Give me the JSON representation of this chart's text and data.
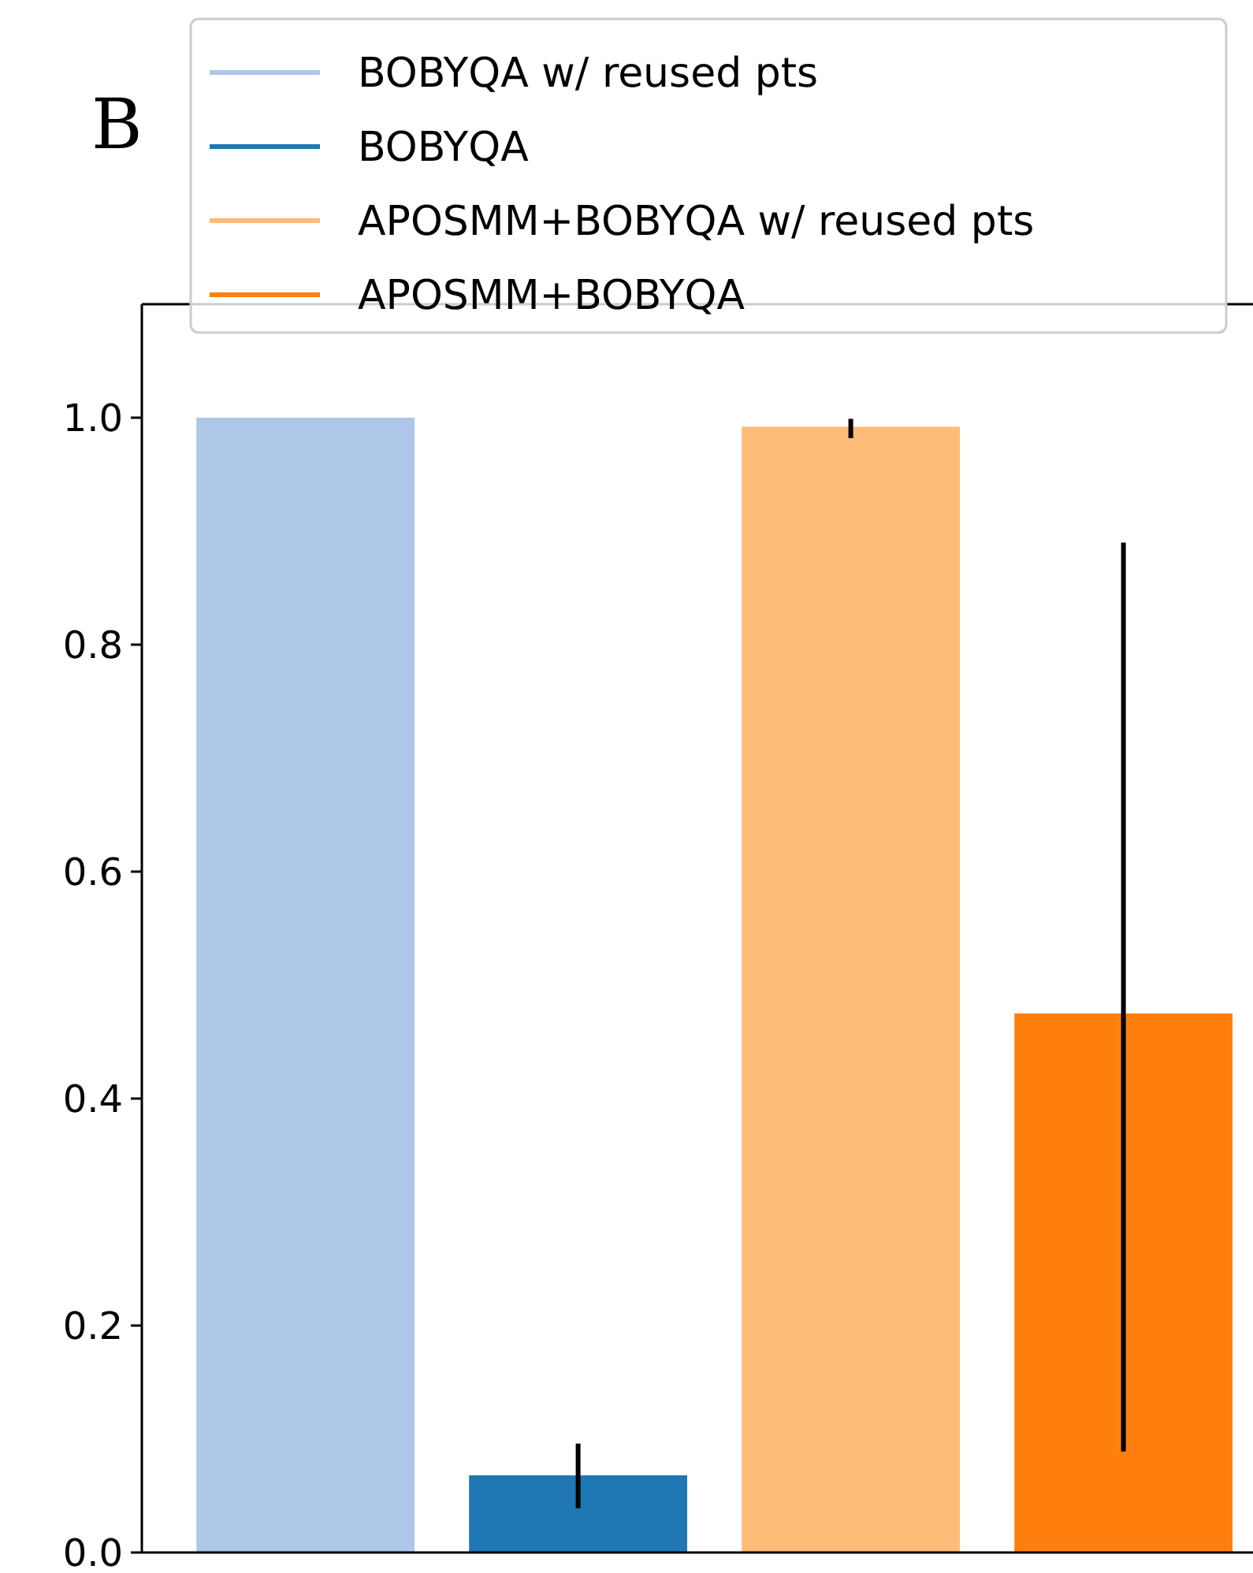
{
  "chart_data": {
    "type": "bar",
    "title": "B",
    "categories": [
      null,
      null,
      null,
      null
    ],
    "series": [
      {
        "name": "BOBYQA w/ reused pts",
        "color": "#aec7e8",
        "values": [
          1.0,
          null,
          null,
          null
        ]
      },
      {
        "name": "BOBYQA",
        "color": "#1f77b4",
        "values": [
          null,
          0.068,
          null,
          null
        ],
        "errors": [
          null,
          [
            0.039,
            0.096
          ],
          null,
          null
        ]
      },
      {
        "name": "APOSMM+BOBYQA w/ reused pts",
        "color": "#ffbb78",
        "values": [
          null,
          null,
          0.992,
          null
        ],
        "errors": [
          null,
          null,
          [
            0.982,
            0.999
          ],
          null
        ]
      },
      {
        "name": "APOSMM+BOBYQA",
        "color": "#ff7f0e",
        "values": [
          null,
          null,
          null,
          0.475
        ],
        "errors": [
          null,
          null,
          null,
          [
            0.089,
            0.89
          ]
        ]
      }
    ],
    "ylim": [
      0,
      1.1
    ],
    "yticks": [
      {
        "value": 0,
        "label": "0.0"
      },
      0.2,
      0.4,
      0.6,
      0.8,
      {
        "value": 1,
        "label": "1.0"
      }
    ],
    "grid": false,
    "legend": "top"
  }
}
